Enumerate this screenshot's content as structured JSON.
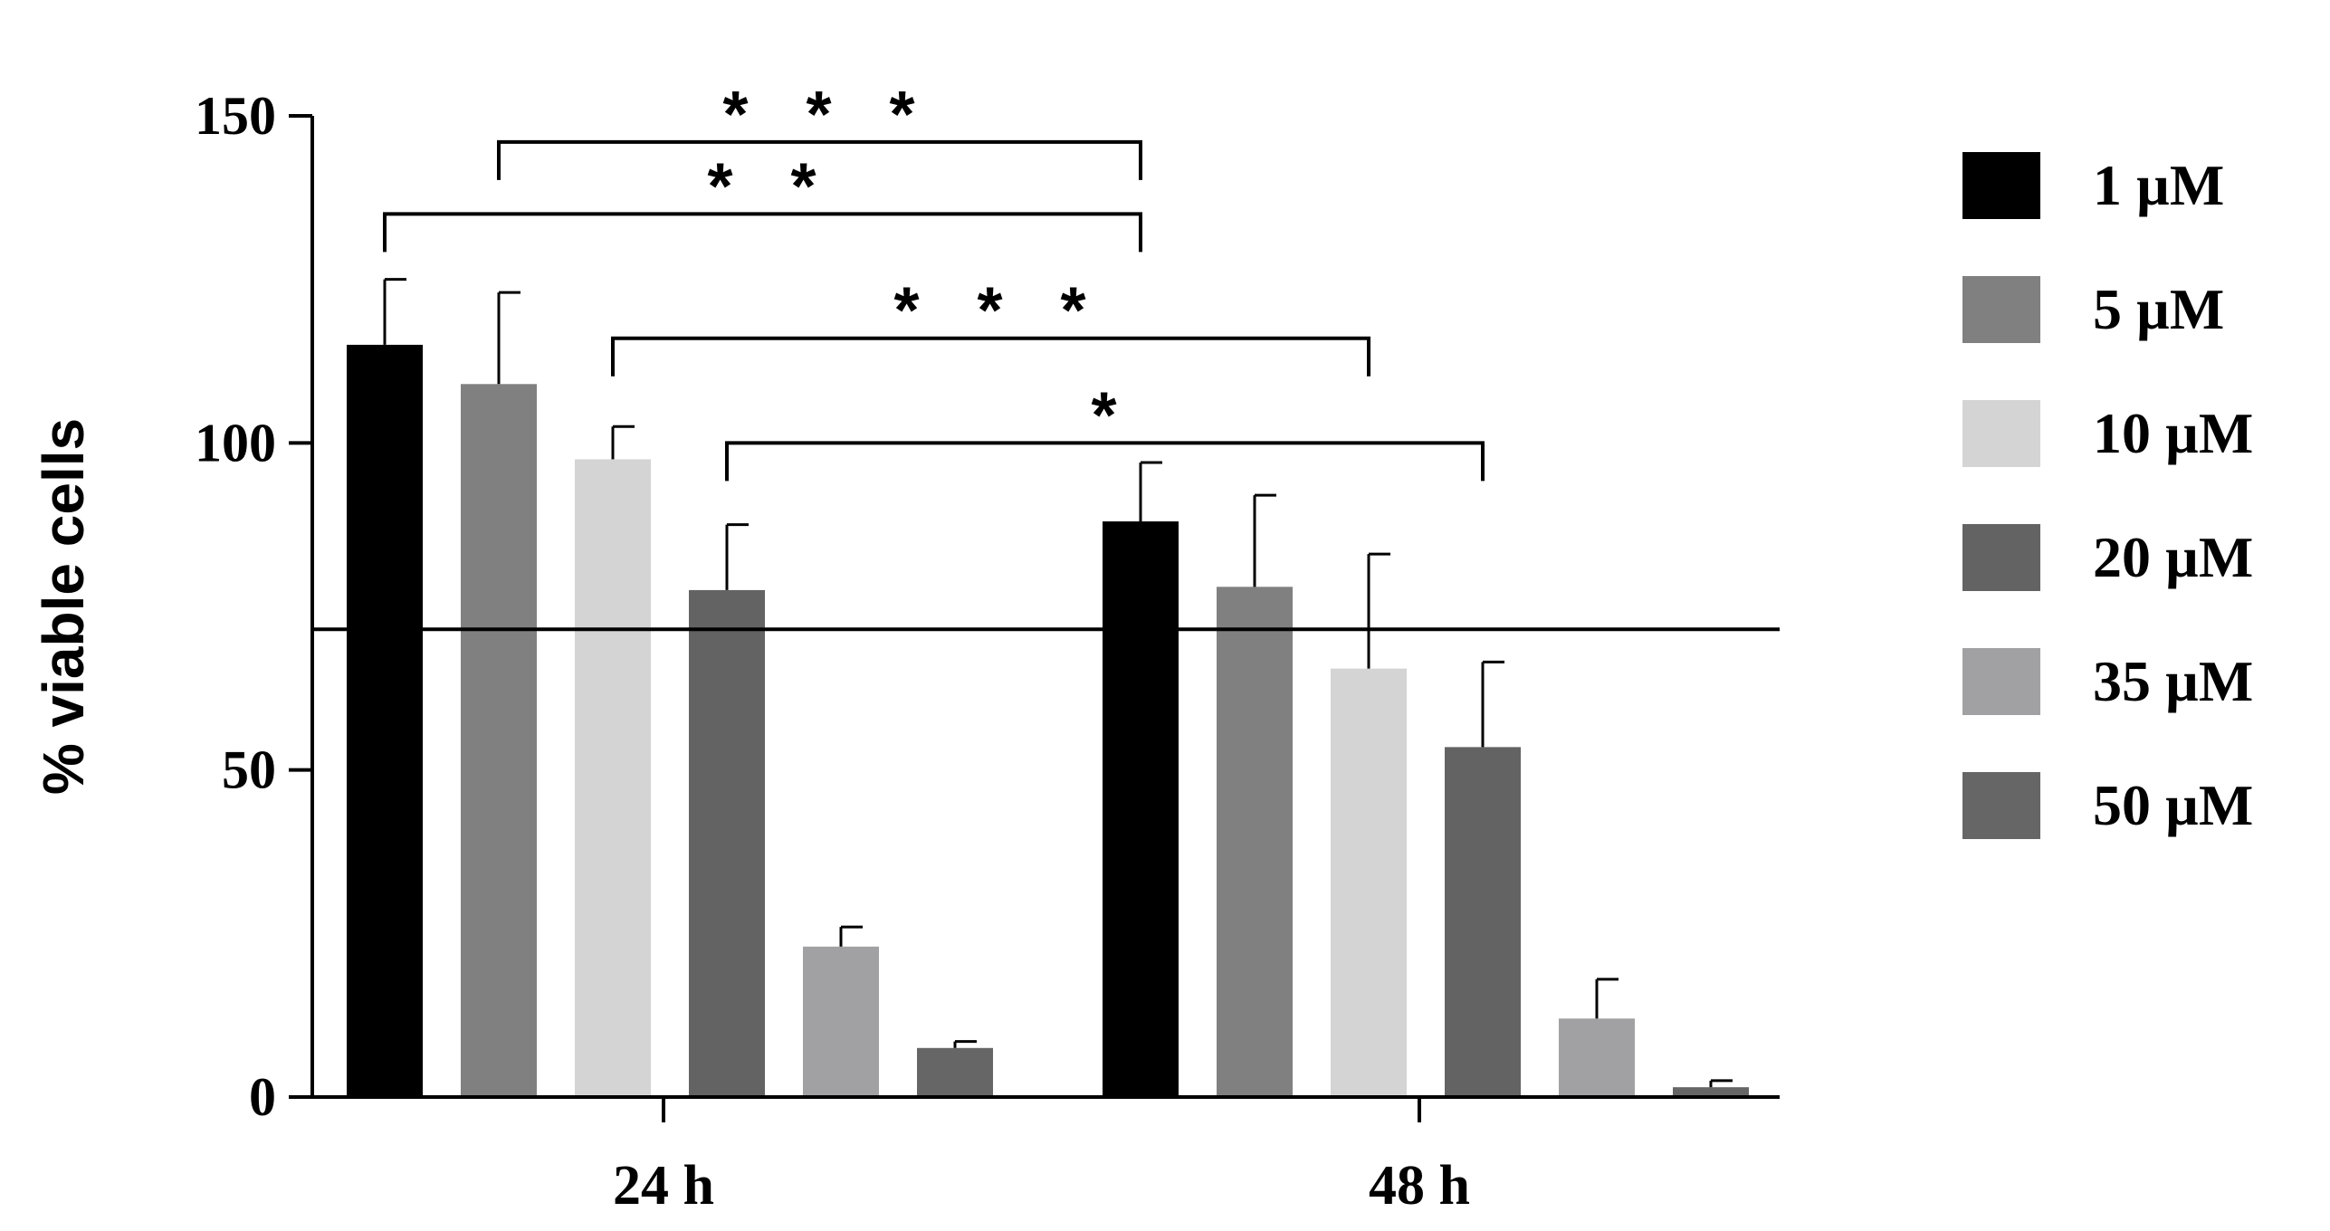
{
  "chart_data": {
    "type": "bar",
    "title": "",
    "xlabel": "",
    "ylabel": "% viable cells",
    "ylim": [
      0,
      150
    ],
    "yticks": [
      0,
      50,
      100,
      150
    ],
    "categories": [
      "24 h",
      "48 h"
    ],
    "series": [
      {
        "name": "1 µM",
        "color": "#000000",
        "values": [
          115,
          88
        ],
        "errors": [
          10,
          9
        ]
      },
      {
        "name": "5 µM",
        "color": "#808080",
        "values": [
          109,
          78
        ],
        "errors": [
          14,
          14
        ]
      },
      {
        "name": "10 µM",
        "color": "#d4d4d4",
        "values": [
          97.5,
          65.5
        ],
        "errors": [
          5,
          17.5
        ]
      },
      {
        "name": "20 µM",
        "color": "#636363",
        "values": [
          77.5,
          53.5
        ],
        "errors": [
          10,
          13
        ]
      },
      {
        "name": "35 µM",
        "color": "#a1a1a3",
        "values": [
          23,
          12
        ],
        "errors": [
          3,
          6
        ]
      },
      {
        "name": "50 µM",
        "color": "#666666",
        "values": [
          7.5,
          1.5
        ],
        "errors": [
          1,
          1
        ]
      }
    ],
    "reference_line": 71.5,
    "legend_position": "right",
    "significance": [
      {
        "label": "* * *",
        "from": {
          "category": "24 h",
          "series": "5 µM"
        },
        "to": {
          "category": "48 h",
          "series": "1 µM"
        },
        "y": 146
      },
      {
        "label": "* *",
        "from": {
          "category": "24 h",
          "series": "1 µM"
        },
        "to": {
          "category": "48 h",
          "series": "1 µM"
        },
        "y": 135
      },
      {
        "label": "* * *",
        "from": {
          "category": "24 h",
          "series": "10 µM"
        },
        "to": {
          "category": "48 h",
          "series": "10 µM"
        },
        "y": 116
      },
      {
        "label": "*",
        "from": {
          "category": "24 h",
          "series": "20 µM"
        },
        "to": {
          "category": "48 h",
          "series": "20 µM"
        },
        "y": 100
      }
    ]
  }
}
